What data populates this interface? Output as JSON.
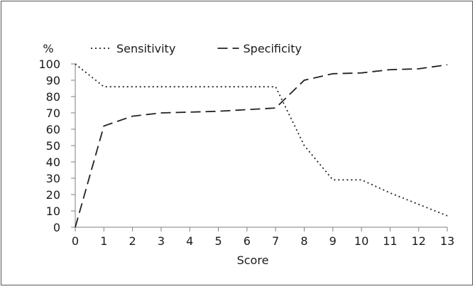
{
  "chart_data": {
    "type": "line",
    "title": "",
    "xlabel": "Score",
    "ylabel": "%",
    "x": [
      0,
      1,
      2,
      3,
      4,
      5,
      6,
      7,
      8,
      9,
      10,
      11,
      12,
      13
    ],
    "xlim": [
      0,
      13
    ],
    "ylim": [
      0,
      100
    ],
    "yticks": [
      0,
      10,
      20,
      30,
      40,
      50,
      60,
      70,
      80,
      90,
      100
    ],
    "grid": false,
    "legend_position": "top",
    "series": [
      {
        "name": "Sensitivity",
        "line_style": "dotted",
        "color": "#222222",
        "values": [
          100,
          86,
          86,
          86,
          86,
          86,
          86,
          86,
          50,
          29,
          29,
          21,
          14,
          7
        ]
      },
      {
        "name": "Specificity",
        "line_style": "dashed",
        "color": "#222222",
        "values": [
          0,
          62,
          68,
          70,
          70.5,
          71,
          72,
          73,
          90,
          94,
          94.5,
          96.5,
          97,
          99.5
        ]
      }
    ]
  }
}
